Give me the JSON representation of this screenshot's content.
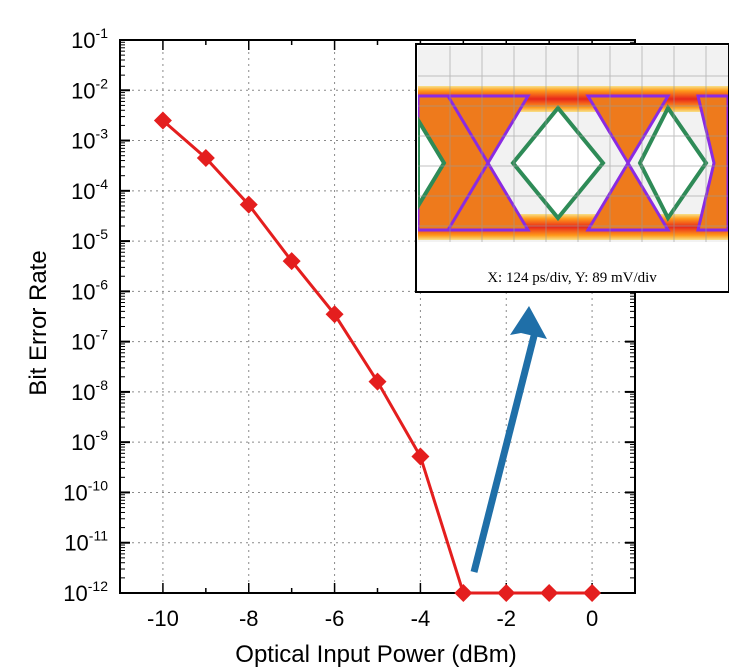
{
  "chart_data": {
    "type": "line",
    "title": "",
    "xlabel": "Optical Input Power (dBm)",
    "ylabel": "Bit Error Rate",
    "xlim": [
      -11,
      1
    ],
    "ylim_exponent": [
      -12,
      -1
    ],
    "y_scale": "log",
    "x_ticks": [
      -10,
      -8,
      -6,
      -4,
      -2,
      0
    ],
    "x_tick_labels": [
      "-10",
      "-8",
      "-6",
      "-4",
      "-2",
      "0"
    ],
    "y_tick_base": "10",
    "y_tick_exponents": [
      "-1",
      "-2",
      "-3",
      "-4",
      "-5",
      "-6",
      "-7",
      "-8",
      "-9",
      "-10",
      "-11",
      "-12"
    ],
    "grid": true,
    "line_color": "#e41e1e",
    "arrow_color": "#1f6fa8",
    "series": [
      {
        "x": [
          -10,
          -9,
          -8,
          -7,
          -6,
          -5,
          -4,
          -3,
          -2,
          -1,
          0
        ],
        "y": [
          0.0025,
          0.00045,
          5.3e-05,
          4e-06,
          3.5e-07,
          1.6e-08,
          5.2e-10,
          1e-12,
          1e-12,
          1e-12,
          1e-12
        ]
      }
    ],
    "inset": {
      "caption": "X: 124 ps/div, Y: 89 mV/div",
      "content": "eye-diagram"
    }
  }
}
